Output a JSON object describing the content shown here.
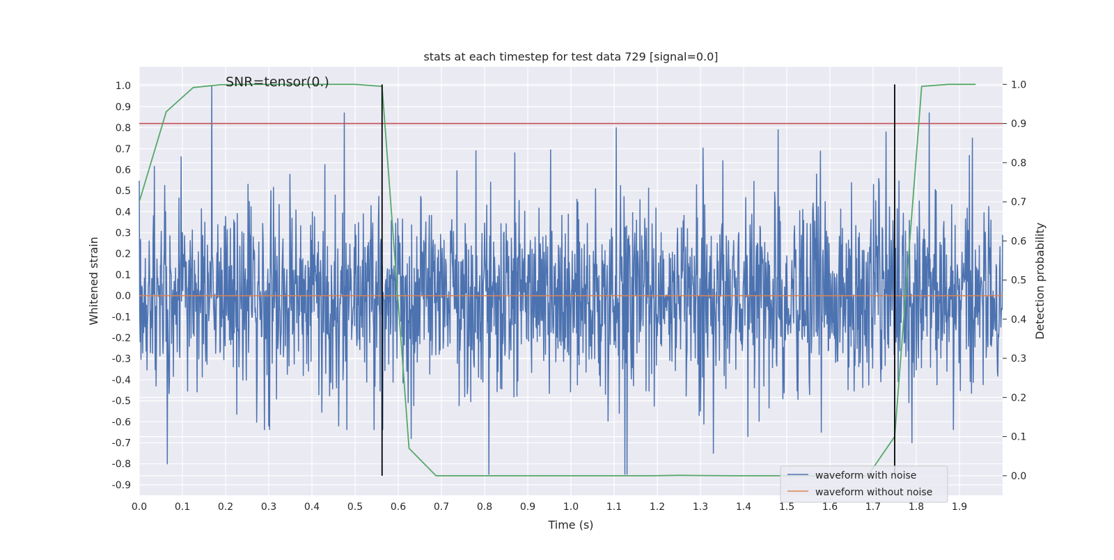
{
  "chart_data": {
    "type": "line",
    "title": "stats at each timestep for test data 729 [signal=0.0]",
    "annotation": "SNR=tensor(0.)",
    "xlabel": "Time (s)",
    "ylabel": "Whitened strain",
    "ylabel_right": "Detection probability",
    "xlim": [
      0.0,
      2.0
    ],
    "ylim": [
      -0.95,
      1.09
    ],
    "ylim_right": [
      -0.05,
      1.045
    ],
    "x_ticks": [
      0.0,
      0.1,
      0.2,
      0.3,
      0.4,
      0.5,
      0.6,
      0.7,
      0.8,
      0.9,
      1.0,
      1.1,
      1.2,
      1.3,
      1.4,
      1.5,
      1.6,
      1.7,
      1.8,
      1.9
    ],
    "x_tick_labels": [
      "0.0",
      "0.1",
      "0.2",
      "0.3",
      "0.4",
      "0.5",
      "0.6",
      "0.7",
      "0.8",
      "0.9",
      "1.0",
      "1.1",
      "1.2",
      "1.3",
      "1.4",
      "1.5",
      "1.6",
      "1.7",
      "1.8",
      "1.9"
    ],
    "y_ticks": [
      1.0,
      0.9,
      0.8,
      0.7,
      0.6,
      0.5,
      0.4,
      0.3,
      0.2,
      0.1,
      0.0,
      -0.1,
      -0.2,
      -0.3,
      -0.4,
      -0.5,
      -0.6,
      -0.7,
      -0.8,
      -0.9
    ],
    "y_tick_labels": [
      "1.0",
      "0.9",
      "0.8",
      "0.7",
      "0.6",
      "0.5",
      "0.4",
      "0.3",
      "0.2",
      "0.1",
      "0.0",
      "-0.1",
      "-0.2",
      "-0.3",
      "-0.4",
      "-0.5",
      "-0.6",
      "-0.7",
      "-0.8",
      "-0.9"
    ],
    "y_ticks_right": [
      1.0,
      0.9,
      0.8,
      0.7,
      0.6,
      0.5,
      0.4,
      0.3,
      0.2,
      0.1,
      0.0
    ],
    "y_tick_labels_right": [
      "1.0",
      "0.9",
      "0.8",
      "0.7",
      "0.6",
      "0.5",
      "0.4",
      "0.3",
      "0.2",
      "0.1",
      "0.0"
    ],
    "grid": true,
    "background": "#eaeaf2",
    "legend_position": "lower-right",
    "series": [
      {
        "name": "waveform with noise",
        "axis": "left",
        "color": "#4c72b0",
        "style": "noise",
        "x_range": [
          0.0,
          2.0
        ],
        "amplitude_std": 0.22,
        "min": -0.85,
        "max": 1.0,
        "spikes": [
          {
            "x": 0.168,
            "y": 1.0
          },
          {
            "x": 0.475,
            "y": 0.87
          },
          {
            "x": 0.065,
            "y": -0.8
          },
          {
            "x": 0.81,
            "y": -0.85
          },
          {
            "x": 1.105,
            "y": 0.8
          },
          {
            "x": 1.125,
            "y": -0.85
          },
          {
            "x": 1.13,
            "y": -0.85
          },
          {
            "x": 1.83,
            "y": 0.87
          },
          {
            "x": 0.78,
            "y": 0.69
          },
          {
            "x": 0.87,
            "y": 0.68
          },
          {
            "x": 1.48,
            "y": 0.79
          },
          {
            "x": 1.73,
            "y": 0.78
          },
          {
            "x": 1.93,
            "y": 0.75
          },
          {
            "x": 0.3,
            "y": -0.62
          },
          {
            "x": 1.33,
            "y": -0.75
          },
          {
            "x": 1.41,
            "y": -0.67
          },
          {
            "x": 1.58,
            "y": -0.65
          },
          {
            "x": 0.63,
            "y": -0.68
          },
          {
            "x": 1.79,
            "y": -0.7
          }
        ]
      },
      {
        "name": "waveform without noise",
        "axis": "left",
        "color": "#dd8452",
        "x": [
          0.0,
          2.0
        ],
        "y": [
          0.0,
          0.0
        ]
      },
      {
        "axis": "right",
        "color": "#55a868",
        "x": [
          0.0,
          0.0625,
          0.125,
          0.1875,
          0.25,
          0.3125,
          0.375,
          0.4375,
          0.5,
          0.5625,
          0.625,
          0.6875,
          0.75,
          0.8125,
          0.875,
          0.9375,
          1.0,
          1.0625,
          1.125,
          1.1875,
          1.25,
          1.3125,
          1.375,
          1.4375,
          1.5,
          1.5625,
          1.625,
          1.6875,
          1.75,
          1.8125,
          1.875,
          1.9375
        ],
        "y": [
          0.7,
          0.93,
          0.992,
          0.999,
          1.0,
          1.0,
          1.0,
          1.0,
          1.0,
          0.995,
          0.07,
          0.0,
          0.0,
          0.0,
          0.0,
          0.0,
          0.0,
          0.0,
          0.0,
          0.0,
          0.001,
          0.0005,
          0.0,
          0.0,
          0.0,
          0.0,
          0.0,
          0.0,
          0.1,
          0.995,
          1.0,
          1.0
        ]
      },
      {
        "axis": "right",
        "color": "#c44e52",
        "x": [
          0.0,
          2.0
        ],
        "y": [
          0.9,
          0.9
        ]
      }
    ],
    "vertical_lines": [
      {
        "x": 0.5625,
        "y_from": 0.0,
        "y_to": 1.0,
        "axis": "right",
        "color": "#000000"
      },
      {
        "x": 1.75,
        "y_from": 0.0,
        "y_to": 1.0,
        "axis": "right",
        "color": "#000000"
      }
    ]
  }
}
